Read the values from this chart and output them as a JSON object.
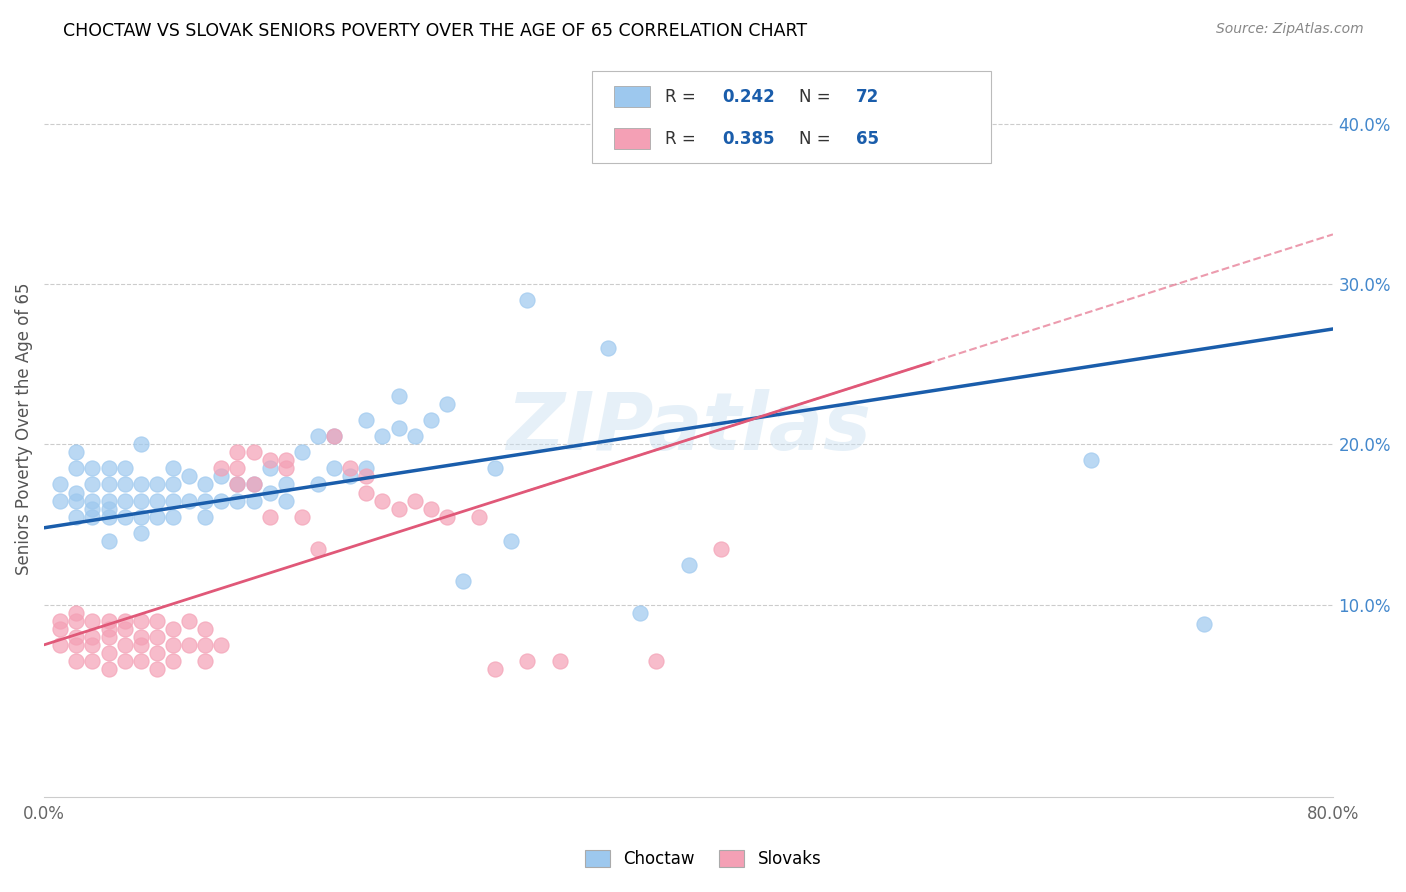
{
  "title": "CHOCTAW VS SLOVAK SENIORS POVERTY OVER THE AGE OF 65 CORRELATION CHART",
  "source": "Source: ZipAtlas.com",
  "ylabel": "Seniors Poverty Over the Age of 65",
  "xlim": [
    0,
    0.8
  ],
  "ylim": [
    -0.02,
    0.44
  ],
  "xtick_positions": [
    0.0,
    0.1,
    0.2,
    0.3,
    0.4,
    0.5,
    0.6,
    0.7,
    0.8
  ],
  "xticklabels": [
    "0.0%",
    "",
    "",
    "",
    "",
    "",
    "",
    "",
    "80.0%"
  ],
  "ytick_positions": [
    0.1,
    0.2,
    0.3,
    0.4
  ],
  "ytick_labels": [
    "10.0%",
    "20.0%",
    "30.0%",
    "40.0%"
  ],
  "choctaw_color": "#9DC8EE",
  "slovak_color": "#F4A0B5",
  "choctaw_line_color": "#1A5DAB",
  "slovak_line_color": "#E05878",
  "choctaw_line_b0": 0.148,
  "choctaw_line_b1": 0.155,
  "slovak_line_b0": 0.075,
  "slovak_line_b1": 0.32,
  "legend_bottom_choctaw": "Choctaw",
  "legend_bottom_slovak": "Slovaks",
  "watermark": "ZIPatlas",
  "choctaw_scatter_x": [
    0.01,
    0.01,
    0.02,
    0.02,
    0.02,
    0.02,
    0.02,
    0.03,
    0.03,
    0.03,
    0.03,
    0.03,
    0.04,
    0.04,
    0.04,
    0.04,
    0.04,
    0.04,
    0.05,
    0.05,
    0.05,
    0.05,
    0.06,
    0.06,
    0.06,
    0.06,
    0.06,
    0.07,
    0.07,
    0.07,
    0.08,
    0.08,
    0.08,
    0.08,
    0.09,
    0.09,
    0.1,
    0.1,
    0.1,
    0.11,
    0.11,
    0.12,
    0.12,
    0.13,
    0.13,
    0.14,
    0.14,
    0.15,
    0.15,
    0.16,
    0.17,
    0.17,
    0.18,
    0.18,
    0.19,
    0.2,
    0.2,
    0.21,
    0.22,
    0.22,
    0.23,
    0.24,
    0.25,
    0.26,
    0.28,
    0.29,
    0.3,
    0.35,
    0.37,
    0.4,
    0.65,
    0.72
  ],
  "choctaw_scatter_y": [
    0.165,
    0.175,
    0.155,
    0.165,
    0.17,
    0.185,
    0.195,
    0.155,
    0.16,
    0.165,
    0.175,
    0.185,
    0.14,
    0.155,
    0.16,
    0.165,
    0.175,
    0.185,
    0.155,
    0.165,
    0.175,
    0.185,
    0.145,
    0.155,
    0.165,
    0.175,
    0.2,
    0.155,
    0.165,
    0.175,
    0.155,
    0.165,
    0.175,
    0.185,
    0.165,
    0.18,
    0.155,
    0.165,
    0.175,
    0.165,
    0.18,
    0.165,
    0.175,
    0.165,
    0.175,
    0.17,
    0.185,
    0.165,
    0.175,
    0.195,
    0.175,
    0.205,
    0.185,
    0.205,
    0.18,
    0.185,
    0.215,
    0.205,
    0.21,
    0.23,
    0.205,
    0.215,
    0.225,
    0.115,
    0.185,
    0.14,
    0.29,
    0.26,
    0.095,
    0.125,
    0.19,
    0.088
  ],
  "slovak_scatter_x": [
    0.01,
    0.01,
    0.01,
    0.02,
    0.02,
    0.02,
    0.02,
    0.02,
    0.03,
    0.03,
    0.03,
    0.03,
    0.04,
    0.04,
    0.04,
    0.04,
    0.04,
    0.05,
    0.05,
    0.05,
    0.05,
    0.06,
    0.06,
    0.06,
    0.06,
    0.07,
    0.07,
    0.07,
    0.07,
    0.08,
    0.08,
    0.08,
    0.09,
    0.09,
    0.1,
    0.1,
    0.1,
    0.11,
    0.11,
    0.12,
    0.12,
    0.12,
    0.13,
    0.13,
    0.14,
    0.14,
    0.15,
    0.15,
    0.16,
    0.17,
    0.18,
    0.19,
    0.2,
    0.2,
    0.21,
    0.22,
    0.23,
    0.24,
    0.25,
    0.27,
    0.28,
    0.3,
    0.32,
    0.38,
    0.42
  ],
  "slovak_scatter_y": [
    0.075,
    0.085,
    0.09,
    0.065,
    0.075,
    0.08,
    0.09,
    0.095,
    0.065,
    0.075,
    0.08,
    0.09,
    0.06,
    0.07,
    0.08,
    0.085,
    0.09,
    0.065,
    0.075,
    0.085,
    0.09,
    0.065,
    0.075,
    0.08,
    0.09,
    0.06,
    0.07,
    0.08,
    0.09,
    0.065,
    0.075,
    0.085,
    0.075,
    0.09,
    0.065,
    0.075,
    0.085,
    0.075,
    0.185,
    0.175,
    0.185,
    0.195,
    0.175,
    0.195,
    0.155,
    0.19,
    0.185,
    0.19,
    0.155,
    0.135,
    0.205,
    0.185,
    0.17,
    0.18,
    0.165,
    0.16,
    0.165,
    0.16,
    0.155,
    0.155,
    0.06,
    0.065,
    0.065,
    0.065,
    0.135
  ]
}
